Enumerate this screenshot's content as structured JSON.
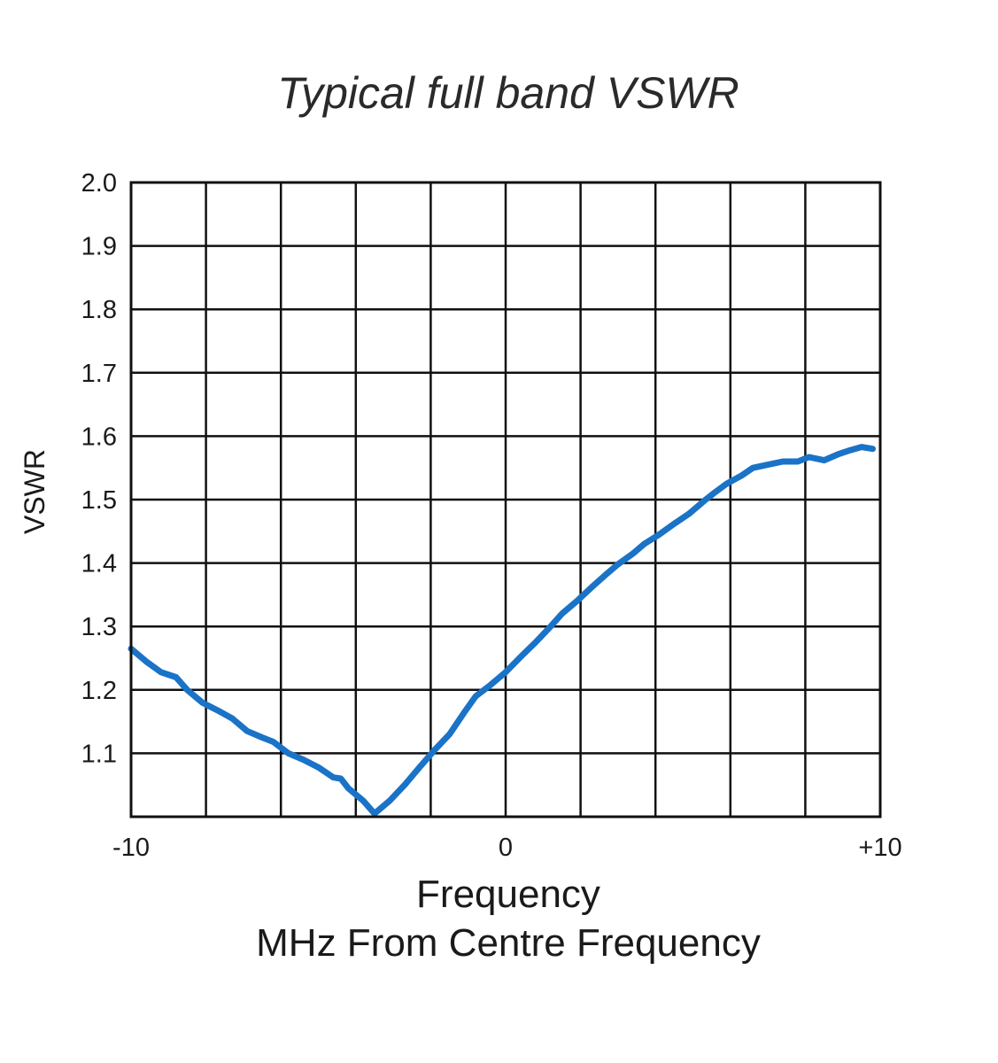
{
  "chart_data": {
    "type": "line",
    "title": "Typical full band VSWR",
    "xlabel": "Frequency",
    "xlabel_sub": "MHz From Centre Frequency",
    "ylabel": "VSWR",
    "xlim": [
      -10,
      10
    ],
    "ylim": [
      1.0,
      2.0
    ],
    "x_tick_labels": [
      {
        "value": -10,
        "label": "-10"
      },
      {
        "value": 0,
        "label": "0"
      },
      {
        "value": 10,
        "label": "+10"
      }
    ],
    "x_grid_divisions": 10,
    "y_tick_labels": [
      {
        "value": 2.0,
        "label": "2.0"
      },
      {
        "value": 1.9,
        "label": "1.9"
      },
      {
        "value": 1.8,
        "label": "1.8"
      },
      {
        "value": 1.7,
        "label": "1.7"
      },
      {
        "value": 1.6,
        "label": "1.6"
      },
      {
        "value": 1.5,
        "label": "1.5"
      },
      {
        "value": 1.4,
        "label": "1.4"
      },
      {
        "value": 1.3,
        "label": "1.3"
      },
      {
        "value": 1.2,
        "label": "1.2"
      },
      {
        "value": 1.1,
        "label": "1.1"
      }
    ],
    "grid": true,
    "series": [
      {
        "name": "VSWR",
        "color": "#1a73c6",
        "x": [
          -10.0,
          -9.6,
          -9.2,
          -8.8,
          -8.5,
          -8.1,
          -7.7,
          -7.3,
          -6.9,
          -6.5,
          -6.2,
          -5.8,
          -5.4,
          -5.0,
          -4.6,
          -4.4,
          -4.2,
          -3.8,
          -3.5,
          -3.1,
          -2.7,
          -2.3,
          -1.9,
          -1.5,
          -1.1,
          -0.8,
          -0.4,
          0.0,
          0.4,
          0.8,
          1.2,
          1.5,
          1.9,
          2.3,
          2.7,
          3.0,
          3.4,
          3.7,
          4.1,
          4.5,
          4.9,
          5.3,
          5.6,
          5.9,
          6.3,
          6.6,
          7.0,
          7.4,
          7.8,
          8.1,
          8.5,
          8.9,
          9.2,
          9.5,
          9.8
        ],
        "values": [
          1.265,
          1.245,
          1.228,
          1.22,
          1.2,
          1.18,
          1.168,
          1.155,
          1.135,
          1.125,
          1.118,
          1.1,
          1.09,
          1.078,
          1.062,
          1.06,
          1.045,
          1.025,
          1.005,
          1.025,
          1.05,
          1.078,
          1.105,
          1.13,
          1.165,
          1.19,
          1.208,
          1.228,
          1.252,
          1.275,
          1.3,
          1.32,
          1.34,
          1.362,
          1.383,
          1.398,
          1.415,
          1.43,
          1.445,
          1.462,
          1.478,
          1.498,
          1.512,
          1.525,
          1.538,
          1.55,
          1.555,
          1.56,
          1.56,
          1.567,
          1.562,
          1.572,
          1.578,
          1.583,
          1.58
        ]
      }
    ]
  }
}
